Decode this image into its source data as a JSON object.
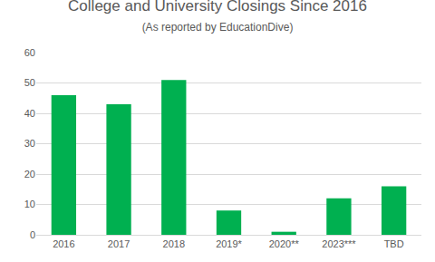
{
  "chart_data": {
    "type": "bar",
    "title": "College and University Closings Since 2016",
    "subtitle": "(As reported by EducationDive)",
    "categories": [
      "2016",
      "2017",
      "2018",
      "2019*",
      "2020**",
      "2023***",
      "TBD"
    ],
    "values": [
      46,
      43,
      51,
      8,
      1,
      12,
      16
    ],
    "color": "#00b050",
    "ylim": [
      0,
      60
    ],
    "yticks": [
      0,
      10,
      20,
      30,
      40,
      50,
      60
    ],
    "grid": true
  }
}
